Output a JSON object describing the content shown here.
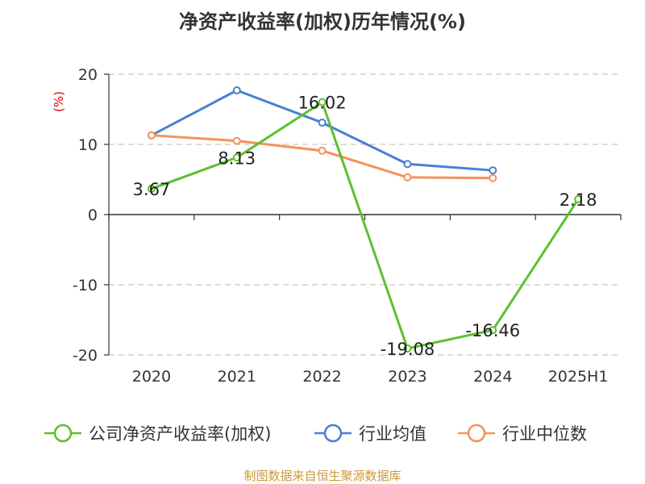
{
  "chart_data": {
    "type": "line",
    "title": "净资产收益率(加权)历年情况(%)",
    "ylabel": "(%)",
    "categories": [
      "2020",
      "2021",
      "2022",
      "2023",
      "2024",
      "2025H1"
    ],
    "yticks": [
      20,
      10,
      0,
      -10,
      -20
    ],
    "ylim": [
      -20,
      20
    ],
    "grid": true,
    "legend_position": "bottom",
    "series": [
      {
        "name": "公司净资产收益率(加权)",
        "color": "#5cc02e",
        "values": [
          3.67,
          8.13,
          16.02,
          -19.08,
          -16.46,
          2.18
        ],
        "labels": [
          "3.67",
          "8.13",
          "16.02",
          "-19.08",
          "-16.46",
          "2.18"
        ]
      },
      {
        "name": "行业均值",
        "color": "#4a7fd6",
        "values": [
          11.3,
          17.7,
          13.1,
          7.2,
          6.3,
          null
        ]
      },
      {
        "name": "行业中位数",
        "color": "#f6915a",
        "values": [
          11.3,
          10.5,
          9.1,
          5.3,
          5.2,
          null
        ]
      }
    ]
  },
  "source_note": "制图数据来自恒生聚源数据库"
}
